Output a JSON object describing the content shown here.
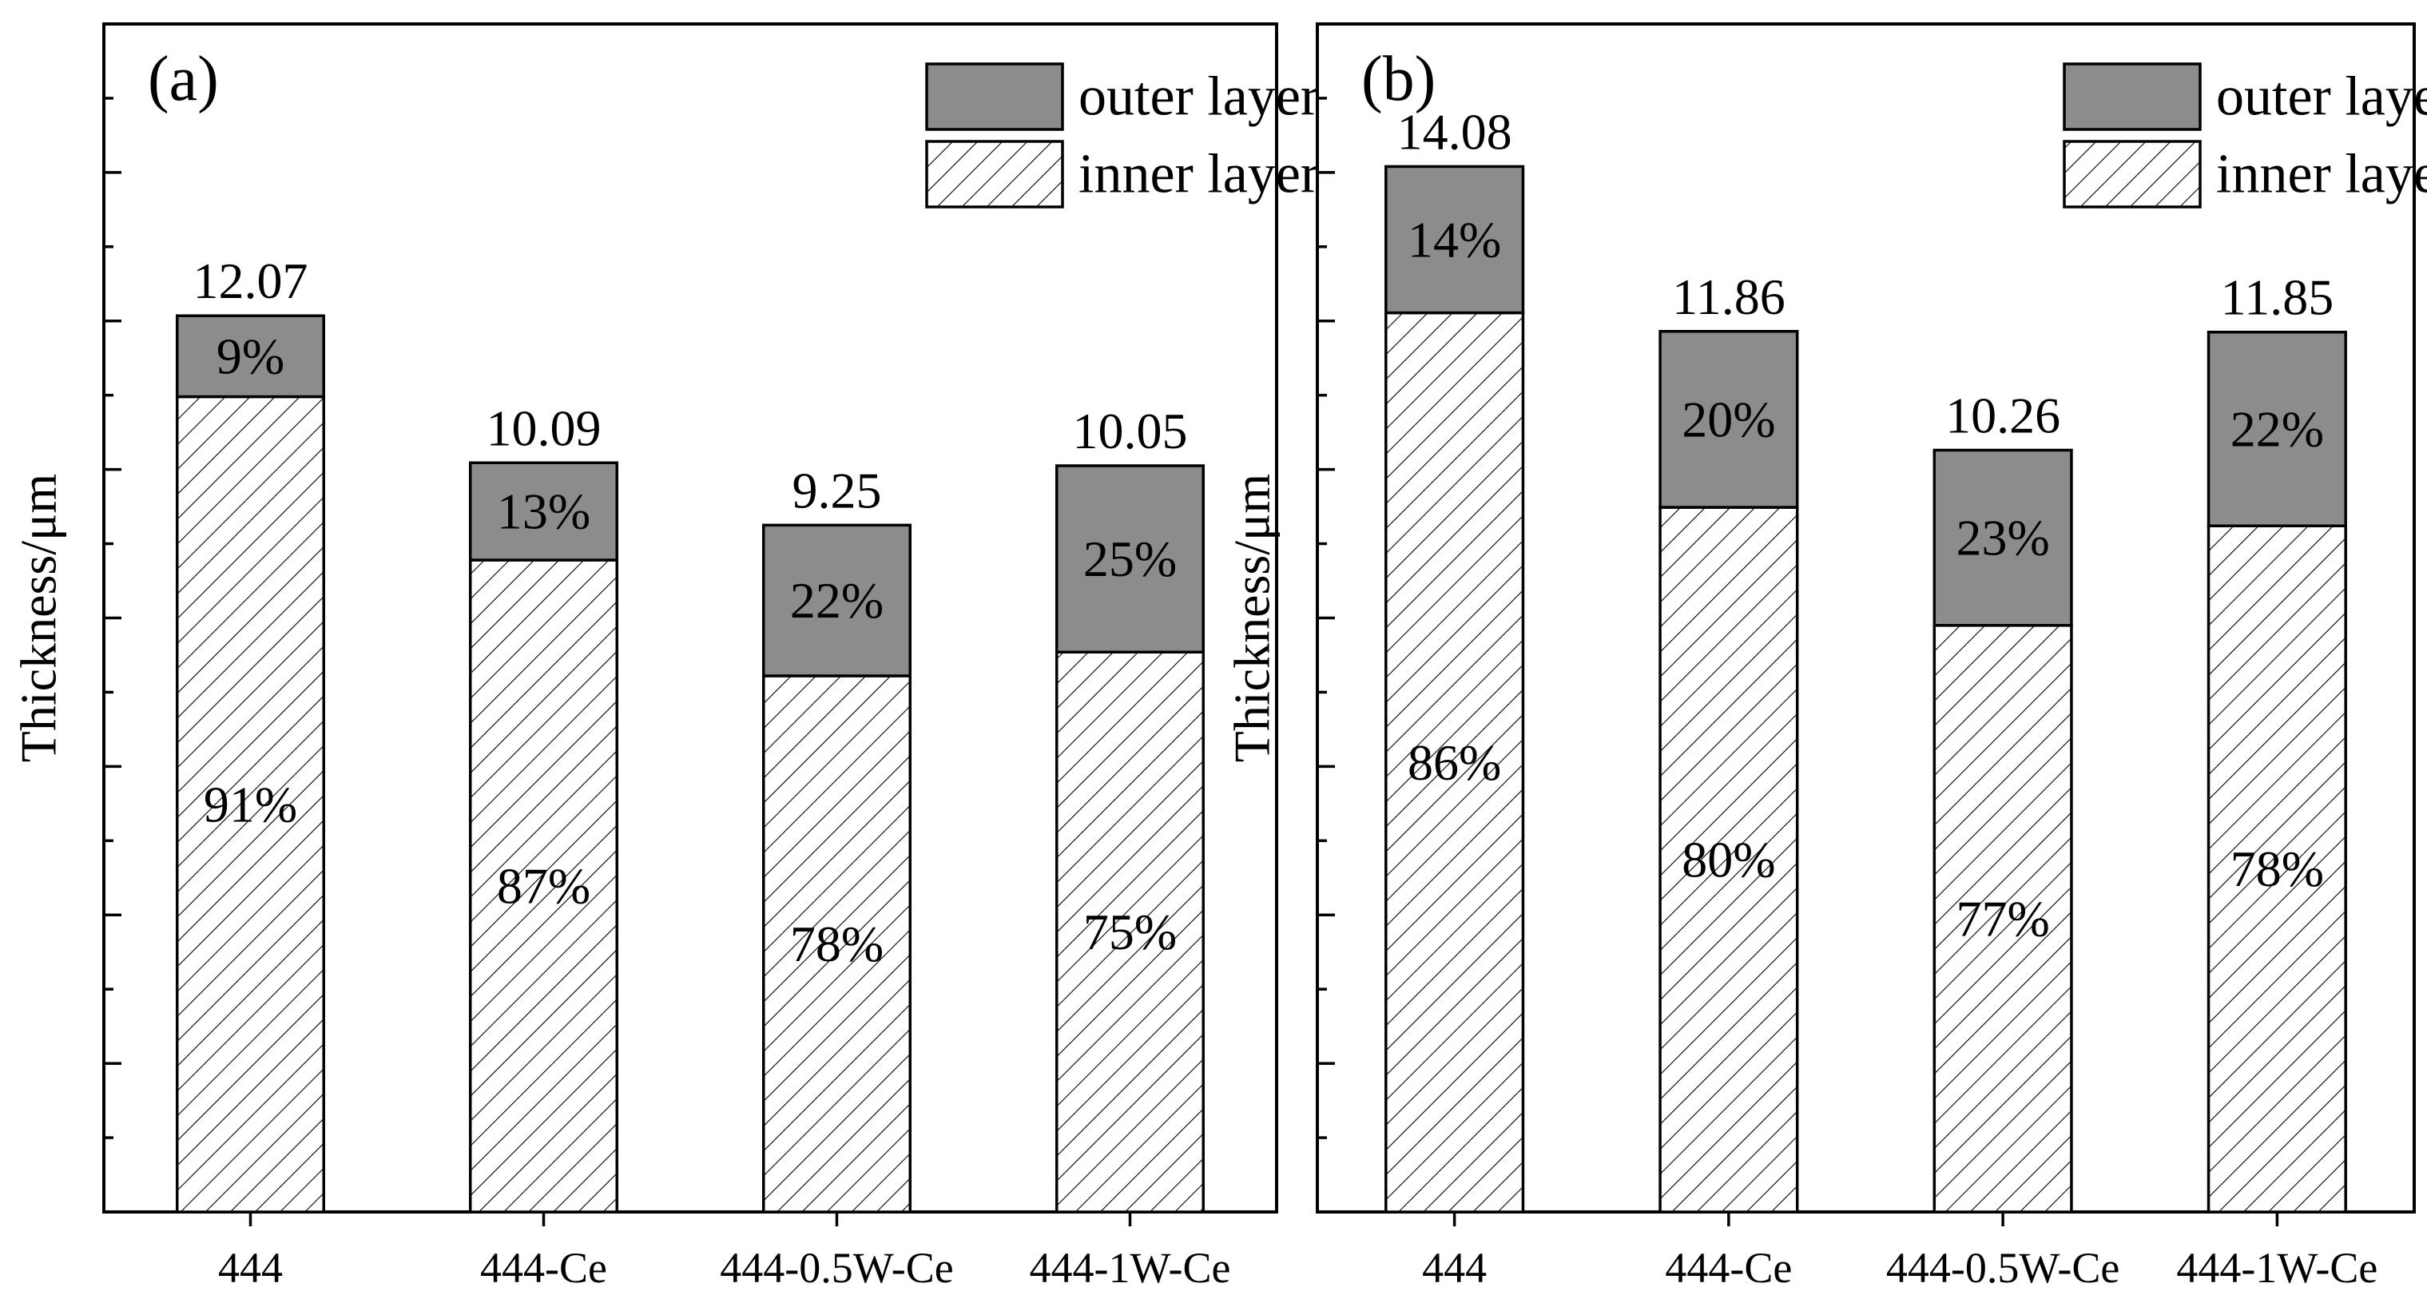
{
  "chart_data": [
    {
      "type": "bar",
      "stacked": true,
      "panel_label": "(a)",
      "ylabel": "Thickness/μm",
      "ylim": [
        0,
        16
      ],
      "y_tick_labels_shown": false,
      "legend": {
        "placement": "top-right",
        "entries": [
          {
            "name": "outer layer",
            "style": "gray-fill",
            "color": "#8c8c8c"
          },
          {
            "name": "inner layer",
            "style": "hatched"
          }
        ]
      },
      "categories": [
        "444",
        "444-Ce",
        "444-0.5W-Ce",
        "444-1W-Ce"
      ],
      "totals": [
        12.07,
        10.09,
        9.25,
        10.05
      ],
      "total_labels": [
        "12.07",
        "10.09",
        "9.25",
        "10.05"
      ],
      "series": [
        {
          "name": "inner layer",
          "values": [
            10.98,
            8.78,
            7.22,
            7.54
          ],
          "percent_labels": [
            "91%",
            "87%",
            "78%",
            "75%"
          ]
        },
        {
          "name": "outer layer",
          "values": [
            1.09,
            1.31,
            2.03,
            2.51
          ],
          "percent_labels": [
            "9%",
            "13%",
            "22%",
            "25%"
          ]
        }
      ]
    },
    {
      "type": "bar",
      "stacked": true,
      "panel_label": "(b)",
      "ylabel": "Thickness/μm",
      "ylim": [
        0,
        16
      ],
      "y_tick_labels_shown": false,
      "legend": {
        "placement": "top-right",
        "entries": [
          {
            "name": "outer layer",
            "style": "gray-fill",
            "color": "#8c8c8c"
          },
          {
            "name": "inner layer",
            "style": "hatched"
          }
        ]
      },
      "categories": [
        "444",
        "444-Ce",
        "444-0.5W-Ce",
        "444-1W-Ce"
      ],
      "totals": [
        14.08,
        11.86,
        10.26,
        11.85
      ],
      "total_labels": [
        "14.08",
        "11.86",
        "10.26",
        "11.85"
      ],
      "series": [
        {
          "name": "inner layer",
          "values": [
            12.11,
            9.49,
            7.9,
            9.24
          ],
          "percent_labels": [
            "86%",
            "80%",
            "77%",
            "78%"
          ]
        },
        {
          "name": "outer layer",
          "values": [
            1.97,
            2.37,
            2.36,
            2.61
          ],
          "percent_labels": [
            "14%",
            "20%",
            "23%",
            "22%"
          ]
        }
      ]
    }
  ]
}
